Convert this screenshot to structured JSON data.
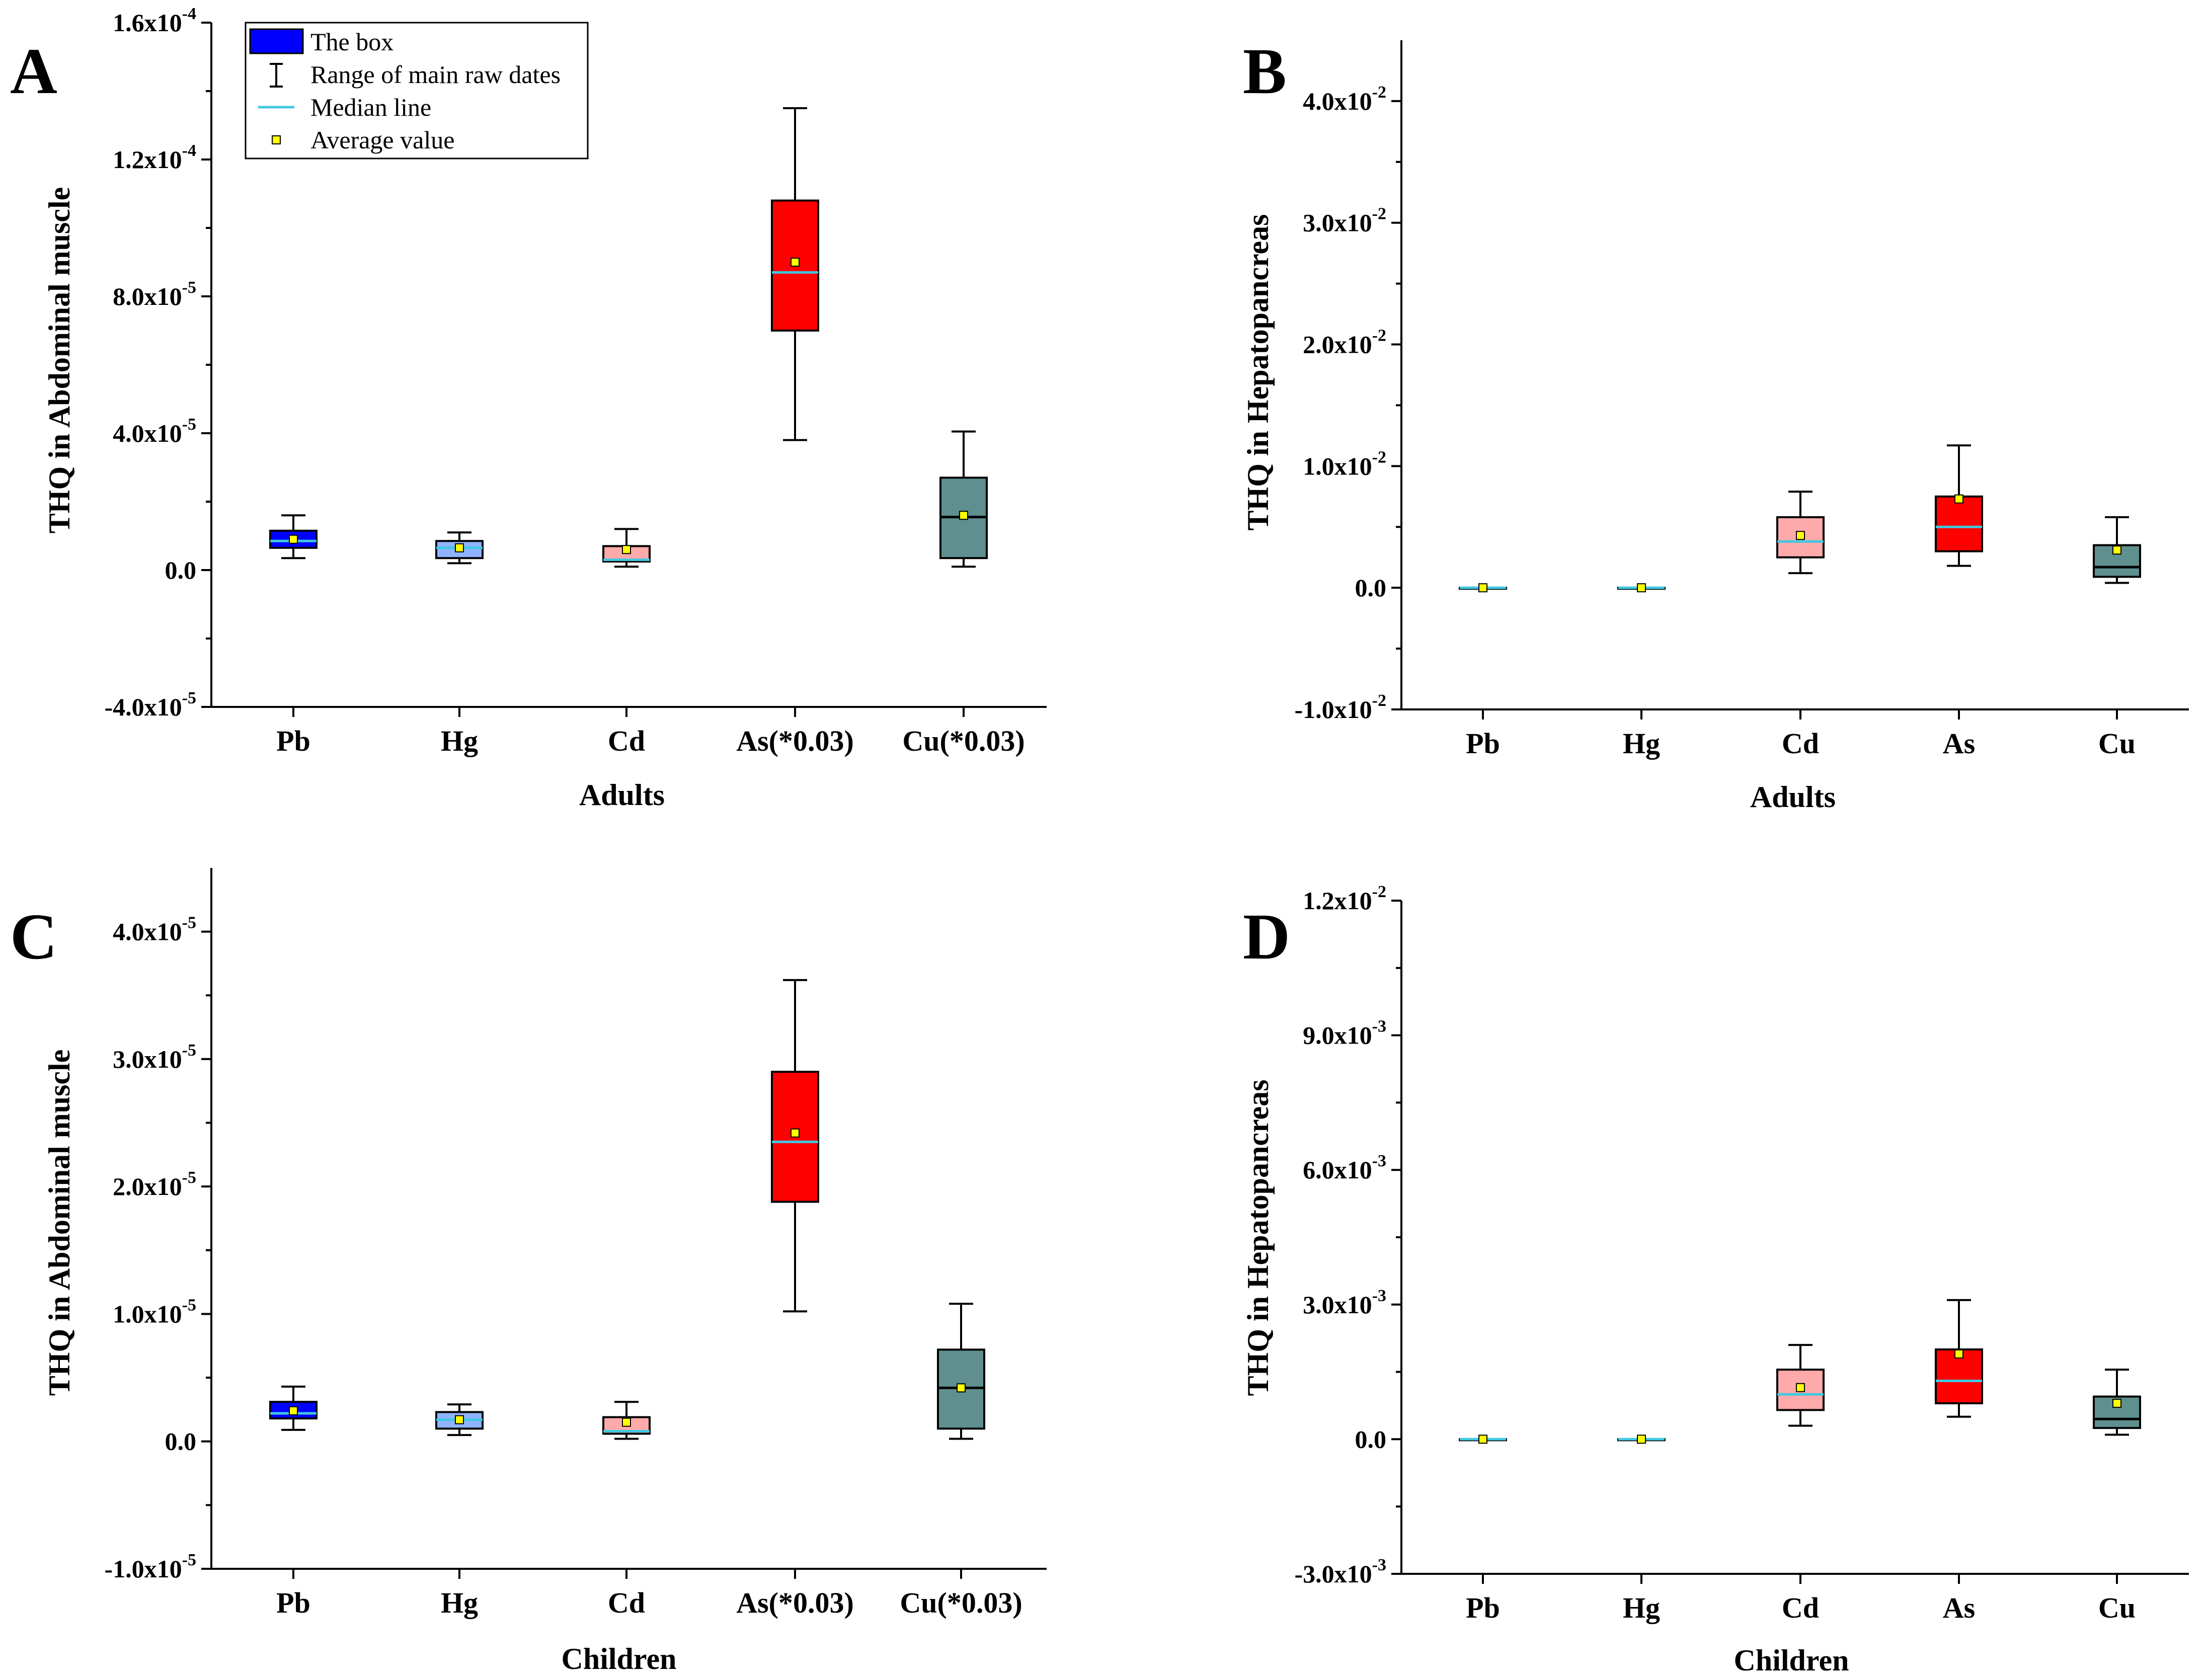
{
  "legend": {
    "items": [
      {
        "label": "The box",
        "icon": "box-swatch-icon"
      },
      {
        "label": "Range of main raw dates",
        "icon": "whisker-range-icon"
      },
      {
        "label": "Median line",
        "icon": "median-line-icon"
      },
      {
        "label": "Average value",
        "icon": "average-marker-icon"
      }
    ],
    "colors": {
      "box": "#0000ff",
      "median": "#40c8e0",
      "average": "#ffff00"
    }
  },
  "chart_data": [
    {
      "panel": "A",
      "type": "box",
      "xlabel": "Adults",
      "ylabel": "THQ in Abdominal muscle",
      "ylim": [
        -4e-05,
        0.00016
      ],
      "yticks": [
        -4e-05,
        0,
        4e-05,
        8e-05,
        0.00012,
        0.00016
      ],
      "ytick_labels": [
        {
          "m": "-4.0x10",
          "e": "-5"
        },
        {
          "m": "0.0",
          "e": ""
        },
        {
          "m": "4.0x10",
          "e": "-5"
        },
        {
          "m": "8.0x10",
          "e": "-5"
        },
        {
          "m": "1.2x10",
          "e": "-4"
        },
        {
          "m": "1.6x10",
          "e": "-4"
        }
      ],
      "categories": [
        "Pb",
        "Hg",
        "Cd",
        "As(*0.03)",
        "Cu(*0.03)"
      ],
      "colors": [
        "#0000ff",
        "#8fb4ff",
        "#ffaaaa",
        "#ff0000",
        "#5f8f8f"
      ],
      "median_colors": [
        "#40c8e0",
        "#40c8e0",
        "#40c8e0",
        "#40c8e0",
        "#000000"
      ],
      "whisker_low": [
        3.5e-06,
        2e-06,
        1e-06,
        3.8e-05,
        1e-06
      ],
      "q1": [
        6.5e-06,
        3.5e-06,
        2.5e-06,
        7e-05,
        3.5e-06
      ],
      "median": [
        8.5e-06,
        6.5e-06,
        3e-06,
        8.7e-05,
        1.55e-05
      ],
      "q3": [
        1.15e-05,
        8.5e-06,
        7e-06,
        0.000108,
        2.7e-05
      ],
      "whisker_high": [
        1.6e-05,
        1.1e-05,
        1.2e-05,
        0.000135,
        4.05e-05
      ],
      "mean": [
        9e-06,
        6.5e-06,
        6e-06,
        9e-05,
        1.6e-05
      ]
    },
    {
      "panel": "B",
      "type": "box",
      "xlabel": "Adults",
      "ylabel": "THQ in Hepatopancreas",
      "ylim": [
        -0.01,
        0.045
      ],
      "yticks": [
        -0.01,
        0,
        0.01,
        0.02,
        0.03,
        0.04
      ],
      "ytick_labels": [
        {
          "m": "-1.0x10",
          "e": "-2"
        },
        {
          "m": "0.0",
          "e": ""
        },
        {
          "m": "1.0x10",
          "e": "-2"
        },
        {
          "m": "2.0x10",
          "e": "-2"
        },
        {
          "m": "3.0x10",
          "e": "-2"
        },
        {
          "m": "4.0x10",
          "e": "-2"
        }
      ],
      "categories": [
        "Pb",
        "Hg",
        "Cd",
        "As",
        "Cu"
      ],
      "colors": [
        "#0000ff",
        "#8fb4ff",
        "#ffaaaa",
        "#ff0000",
        "#5f8f8f"
      ],
      "median_colors": [
        "#40c8e0",
        "#40c8e0",
        "#40c8e0",
        "#40c8e0",
        "#000000"
      ],
      "whisker_low": [
        0,
        0,
        0.0012,
        0.0018,
        0.0004
      ],
      "q1": [
        0,
        0,
        0.0025,
        0.003,
        0.0009
      ],
      "median": [
        0,
        0,
        0.0038,
        0.005,
        0.0017
      ],
      "q3": [
        0,
        0,
        0.0058,
        0.0075,
        0.0035
      ],
      "whisker_high": [
        0,
        0,
        0.0079,
        0.0117,
        0.0058
      ],
      "mean": [
        0,
        0,
        0.0043,
        0.0073,
        0.0031
      ]
    },
    {
      "panel": "C",
      "type": "box",
      "xlabel": "Children",
      "ylabel": "THQ in Abdominal muscle",
      "ylim": [
        -1e-05,
        4.5e-05
      ],
      "yticks": [
        -1e-05,
        0,
        1e-05,
        2e-05,
        3e-05,
        4e-05
      ],
      "ytick_labels": [
        {
          "m": "-1.0x10",
          "e": "-5"
        },
        {
          "m": "0.0",
          "e": ""
        },
        {
          "m": "1.0x10",
          "e": "-5"
        },
        {
          "m": "2.0x10",
          "e": "-5"
        },
        {
          "m": "3.0x10",
          "e": "-5"
        },
        {
          "m": "4.0x10",
          "e": "-5"
        }
      ],
      "categories": [
        "Pb",
        "Hg",
        "Cd",
        "As(*0.03)",
        "Cu(*0.03)"
      ],
      "colors": [
        "#0000ff",
        "#8fb4ff",
        "#ffaaaa",
        "#ff0000",
        "#5f8f8f"
      ],
      "median_colors": [
        "#40c8e0",
        "#40c8e0",
        "#40c8e0",
        "#40c8e0",
        "#000000"
      ],
      "whisker_low": [
        9e-07,
        5e-07,
        2e-07,
        1.02e-05,
        2e-07
      ],
      "q1": [
        1.8e-06,
        1e-06,
        6e-07,
        1.88e-05,
        1e-06
      ],
      "median": [
        2.2e-06,
        1.7e-06,
        8e-07,
        2.35e-05,
        4.2e-06
      ],
      "q3": [
        3.1e-06,
        2.3e-06,
        1.9e-06,
        2.9e-05,
        7.2e-06
      ],
      "whisker_high": [
        4.3e-06,
        2.9e-06,
        3.1e-06,
        3.62e-05,
        1.08e-05
      ],
      "mean": [
        2.4e-06,
        1.7e-06,
        1.5e-06,
        2.42e-05,
        4.2e-06
      ]
    },
    {
      "panel": "D",
      "type": "box",
      "xlabel": "Children",
      "ylabel": "THQ in Hepatopancreas",
      "ylim": [
        -0.003,
        0.012
      ],
      "yticks": [
        -0.003,
        0,
        0.003,
        0.006,
        0.009,
        0.012
      ],
      "ytick_labels": [
        {
          "m": "-3.0x10",
          "e": "-3"
        },
        {
          "m": "0.0",
          "e": ""
        },
        {
          "m": "3.0x10",
          "e": "-3"
        },
        {
          "m": "6.0x10",
          "e": "-3"
        },
        {
          "m": "9.0x10",
          "e": "-3"
        },
        {
          "m": "1.2x10",
          "e": "-2"
        }
      ],
      "categories": [
        "Pb",
        "Hg",
        "Cd",
        "As",
        "Cu"
      ],
      "colors": [
        "#0000ff",
        "#8fb4ff",
        "#ffaaaa",
        "#ff0000",
        "#5f8f8f"
      ],
      "median_colors": [
        "#40c8e0",
        "#40c8e0",
        "#40c8e0",
        "#40c8e0",
        "#000000"
      ],
      "whisker_low": [
        0,
        0,
        0.0003,
        0.0005,
        0.0001
      ],
      "q1": [
        0,
        0,
        0.00065,
        0.0008,
        0.00025
      ],
      "median": [
        0,
        0,
        0.001,
        0.0013,
        0.00045
      ],
      "q3": [
        0,
        0,
        0.00155,
        0.002,
        0.00095
      ],
      "whisker_high": [
        0,
        0,
        0.0021,
        0.0031,
        0.00155
      ],
      "mean": [
        0,
        0,
        0.00115,
        0.0019,
        0.0008
      ]
    }
  ]
}
